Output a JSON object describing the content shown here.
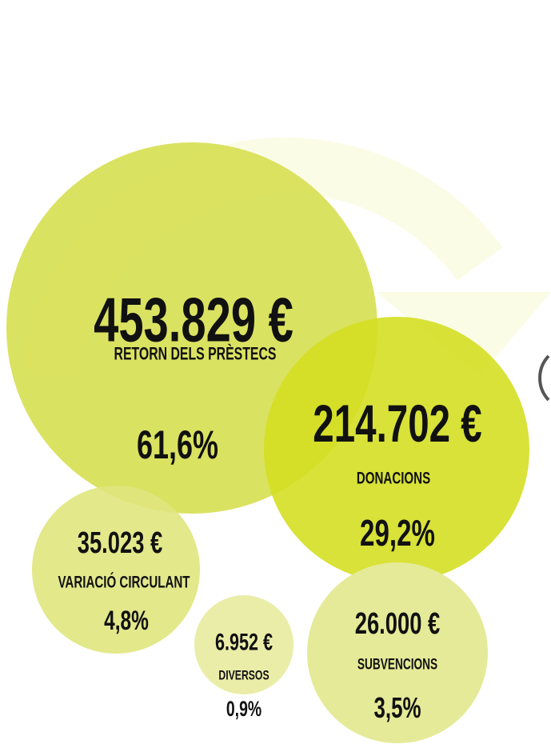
{
  "bubbles": [
    {
      "amount": "453.829 €",
      "label": "RETORN DELS PRÈSTECS",
      "percent": "61,6%"
    },
    {
      "amount": "214.702 €",
      "label": "DONACIONS",
      "percent": "29,2%"
    },
    {
      "amount": "35.023 €",
      "label": "VARIACIÓ CIRCULANT",
      "percent": "4,8%"
    },
    {
      "amount": "6.952 €",
      "label": "DIVERSOS",
      "percent": "0,9%"
    },
    {
      "amount": "26.000 €",
      "label": "SUBVENCIONS",
      "percent": "3,5%"
    }
  ]
}
